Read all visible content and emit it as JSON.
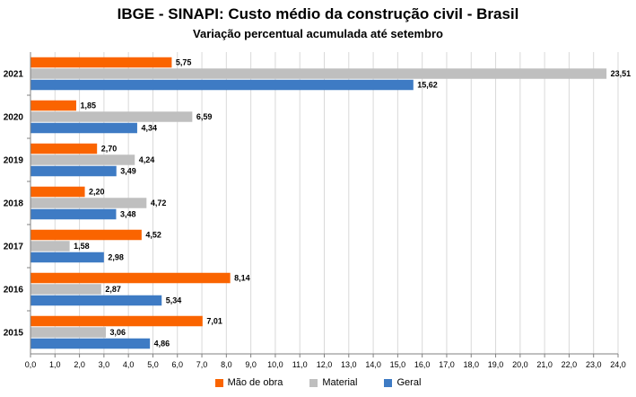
{
  "chart_data": {
    "type": "bar",
    "orientation": "horizontal",
    "title": "IBGE - SINAPI: Custo médio da construção civil - Brasil",
    "subtitle": "Variação percentual acumulada até setembro",
    "categories": [
      "2021",
      "2020",
      "2019",
      "2018",
      "2017",
      "2016",
      "2015"
    ],
    "series": [
      {
        "name": "Mão de obra",
        "color": "#fa6400",
        "values": [
          5.75,
          1.85,
          2.7,
          2.2,
          4.52,
          8.14,
          7.01
        ],
        "labels": [
          "5,75",
          "1,85",
          "2,70",
          "2,20",
          "4,52",
          "8,14",
          "7,01"
        ]
      },
      {
        "name": "Material",
        "color": "#bfbfbf",
        "values": [
          23.51,
          6.59,
          4.24,
          4.72,
          1.58,
          2.87,
          3.06
        ],
        "labels": [
          "23,51",
          "6,59",
          "4,24",
          "4,72",
          "1,58",
          "2,87",
          "3,06"
        ]
      },
      {
        "name": "Geral",
        "color": "#3e7bc4",
        "values": [
          15.62,
          4.34,
          3.49,
          3.48,
          2.98,
          5.34,
          4.86
        ],
        "labels": [
          "15,62",
          "4,34",
          "3,49",
          "3,48",
          "2,98",
          "5,34",
          "4,86"
        ]
      }
    ],
    "xlim": [
      0,
      24
    ],
    "xticks": [
      "0,0",
      "1,0",
      "2,0",
      "3,0",
      "4,0",
      "5,0",
      "6,0",
      "7,0",
      "8,0",
      "9,0",
      "10,0",
      "11,0",
      "12,0",
      "13,0",
      "14,0",
      "15,0",
      "16,0",
      "17,0",
      "18,0",
      "19,0",
      "20,0",
      "21,0",
      "22,0",
      "23,0",
      "24,0"
    ],
    "grid": true,
    "legend_position": "bottom"
  }
}
